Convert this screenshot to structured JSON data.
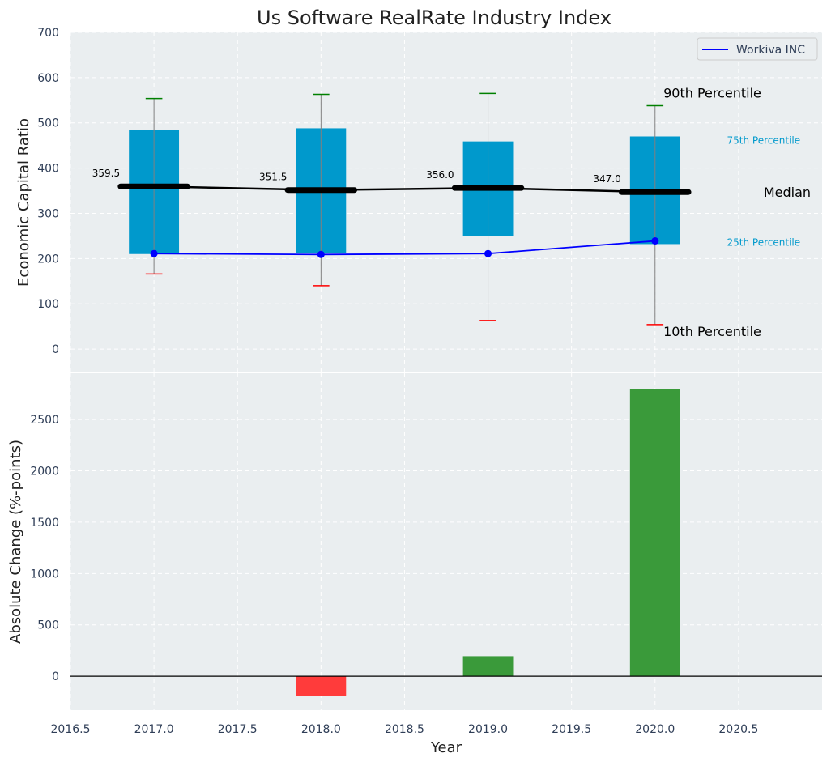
{
  "chart_data": [
    {
      "type": "box",
      "title": "Us Software RealRate Industry Index",
      "ylabel": "Economic Capital Ratio",
      "ylim": [
        -50,
        700
      ],
      "yticks": [
        0,
        100,
        200,
        300,
        400,
        500,
        600,
        700
      ],
      "grid": true,
      "legend": {
        "placement": "top-right",
        "entries": [
          "Workiva INC"
        ]
      },
      "x": [
        2017,
        2018,
        2019,
        2020
      ],
      "p10": [
        166,
        140,
        63,
        54
      ],
      "p25": [
        210,
        213,
        249,
        232
      ],
      "median": [
        359.5,
        351.5,
        356.0,
        347.0
      ],
      "median_labels": [
        "359.5",
        "351.5",
        "356.0",
        "347.0"
      ],
      "p75": [
        484,
        488,
        459,
        470
      ],
      "p90": [
        554,
        563,
        565,
        538
      ],
      "series": [
        {
          "name": "Workiva INC",
          "values": [
            211,
            209,
            211,
            239
          ],
          "color": "#0000ff"
        }
      ],
      "annotations": {
        "p90": "90th Percentile",
        "p75": "75th Percentile",
        "median": "Median",
        "p25": "25th Percentile",
        "p10": "10th Percentile"
      },
      "colors": {
        "box": "#0099cc",
        "median": "#000000",
        "p90_cap": "#008000",
        "p10_cap": "#ff0000",
        "whisker": "#808080",
        "background": "#eaeef0",
        "annotation_small": "#0099cc"
      }
    },
    {
      "type": "bar",
      "xlabel": "Year",
      "ylabel": "Absolute Change (%-points)",
      "xlim": [
        2016.5,
        2021.0
      ],
      "xticks": [
        "2016.5",
        "2017.0",
        "2017.5",
        "2018.0",
        "2018.5",
        "2019.0",
        "2019.5",
        "2020.0",
        "2020.5"
      ],
      "ylim": [
        -330,
        2950
      ],
      "yticks": [
        0,
        500,
        1000,
        1500,
        2000,
        2500
      ],
      "grid": true,
      "x": [
        2018,
        2019,
        2020
      ],
      "values": [
        -195,
        195,
        2800
      ],
      "colors": {
        "positive": "#3a9a3a",
        "negative": "#ff3b3b",
        "zero_line": "#000000"
      }
    }
  ]
}
